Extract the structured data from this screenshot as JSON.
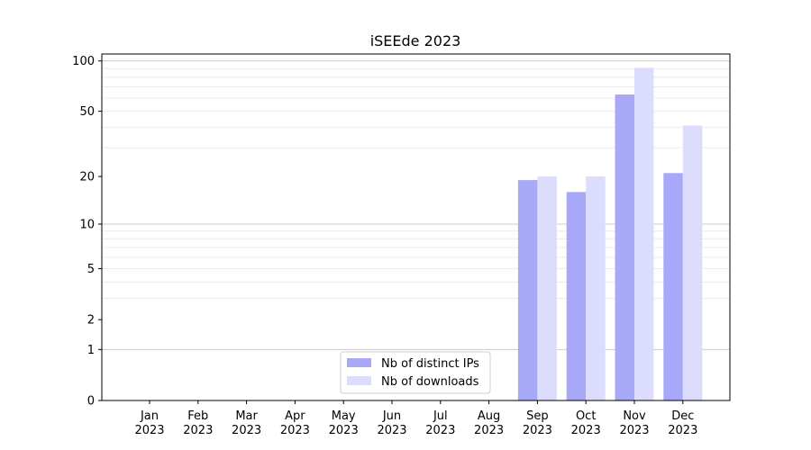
{
  "chart_data": {
    "type": "bar",
    "title": "iSEEde 2023",
    "xlabel": "",
    "ylabel": "",
    "yscale": "log1p",
    "ylim": [
      0,
      110
    ],
    "yticks": [
      0,
      1,
      2,
      5,
      10,
      20,
      50,
      100
    ],
    "categories": [
      "Jan\n2023",
      "Feb\n2023",
      "Mar\n2023",
      "Apr\n2023",
      "May\n2023",
      "Jun\n2023",
      "Jul\n2023",
      "Aug\n2023",
      "Sep\n2023",
      "Oct\n2023",
      "Nov\n2023",
      "Dec\n2023"
    ],
    "series": [
      {
        "name": "Nb of distinct IPs",
        "color": "#a8a8f8",
        "values": [
          0,
          0,
          0,
          0,
          0,
          0,
          0,
          0,
          19,
          16,
          63,
          21
        ]
      },
      {
        "name": "Nb of downloads",
        "color": "#dcdcfc",
        "values": [
          0,
          0,
          0,
          0,
          0,
          0,
          0,
          0,
          20,
          20,
          91,
          41
        ]
      }
    ],
    "grid": "y-major-and-minor",
    "legend_position": "lower-center"
  }
}
